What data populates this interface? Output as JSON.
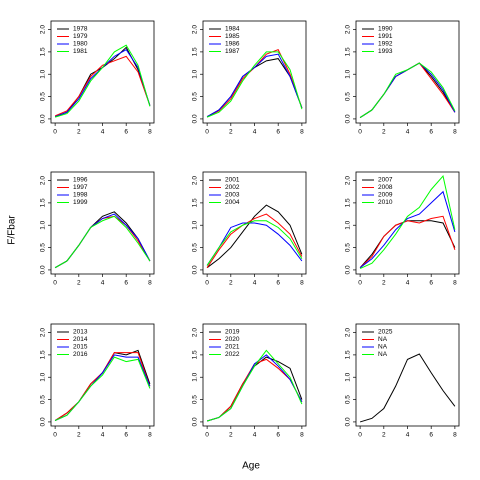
{
  "ylabel": "F/Fbar",
  "xlabel": "Age",
  "chart_data": [
    {
      "type": "line",
      "x": [
        0,
        1,
        2,
        3,
        4,
        5,
        6,
        7,
        8
      ],
      "xlim": [
        0,
        8
      ],
      "xticks": [
        0,
        2,
        4,
        6,
        8
      ],
      "ylim": [
        0,
        2.1
      ],
      "yticks": [
        {
          "value": 0,
          "label": "0.0"
        },
        {
          "value": 0.5,
          "label": "0.5"
        },
        {
          "value": 1,
          "label": "1.0"
        },
        {
          "value": 1.5,
          "label": "1.5"
        },
        {
          "value": 2,
          "label": "2.0"
        }
      ],
      "legend": "top-left",
      "series": [
        {
          "name": "1978",
          "color": "#000000",
          "values": [
            0.05,
            0.15,
            0.5,
            1.0,
            1.15,
            1.35,
            1.6,
            1.1,
            0.3
          ]
        },
        {
          "name": "1979",
          "color": "#ff0000",
          "values": [
            0.07,
            0.18,
            0.5,
            0.95,
            1.2,
            1.3,
            1.4,
            1.05,
            0.3
          ]
        },
        {
          "name": "1980",
          "color": "#0000ff",
          "values": [
            0.05,
            0.15,
            0.45,
            0.9,
            1.15,
            1.4,
            1.55,
            1.15,
            0.3
          ]
        },
        {
          "name": "1981",
          "color": "#00ff00",
          "values": [
            0.04,
            0.12,
            0.4,
            0.85,
            1.15,
            1.5,
            1.65,
            1.2,
            0.28
          ]
        }
      ]
    },
    {
      "type": "line",
      "x": [
        0,
        1,
        2,
        3,
        4,
        5,
        6,
        7,
        8
      ],
      "xlim": [
        0,
        8
      ],
      "xticks": [
        0,
        2,
        4,
        6,
        8
      ],
      "ylim": [
        0,
        2.1
      ],
      "yticks": [
        {
          "value": 0,
          "label": "0.0"
        },
        {
          "value": 0.5,
          "label": "0.5"
        },
        {
          "value": 1,
          "label": "1.0"
        },
        {
          "value": 1.5,
          "label": "1.5"
        },
        {
          "value": 2,
          "label": "2.0"
        }
      ],
      "legend": "top-left",
      "series": [
        {
          "name": "1984",
          "color": "#000000",
          "values": [
            0.05,
            0.2,
            0.5,
            0.95,
            1.15,
            1.3,
            1.35,
            0.95,
            0.25
          ]
        },
        {
          "name": "1985",
          "color": "#ff0000",
          "values": [
            0.05,
            0.18,
            0.45,
            0.9,
            1.15,
            1.45,
            1.55,
            1.0,
            0.25
          ]
        },
        {
          "name": "1986",
          "color": "#0000ff",
          "values": [
            0.05,
            0.2,
            0.5,
            0.95,
            1.15,
            1.4,
            1.45,
            0.95,
            0.25
          ]
        },
        {
          "name": "1987",
          "color": "#00ff00",
          "values": [
            0.04,
            0.15,
            0.4,
            0.85,
            1.2,
            1.5,
            1.5,
            1.1,
            0.22
          ]
        }
      ]
    },
    {
      "type": "line",
      "x": [
        0,
        1,
        2,
        3,
        4,
        5,
        6,
        7,
        8
      ],
      "xlim": [
        0,
        8
      ],
      "xticks": [
        0,
        2,
        4,
        6,
        8
      ],
      "ylim": [
        0,
        2.1
      ],
      "yticks": [
        {
          "value": 0,
          "label": "0.0"
        },
        {
          "value": 0.5,
          "label": "0.5"
        },
        {
          "value": 1,
          "label": "1.0"
        },
        {
          "value": 1.5,
          "label": "1.5"
        },
        {
          "value": 2,
          "label": "2.0"
        }
      ],
      "legend": "top-left",
      "series": [
        {
          "name": "1990",
          "color": "#000000",
          "values": [
            0.03,
            0.2,
            0.55,
            0.95,
            1.1,
            1.25,
            0.95,
            0.6,
            0.15
          ]
        },
        {
          "name": "1991",
          "color": "#ff0000",
          "values": [
            0.03,
            0.2,
            0.55,
            0.95,
            1.1,
            1.25,
            0.9,
            0.55,
            0.15
          ]
        },
        {
          "name": "1992",
          "color": "#0000ff",
          "values": [
            0.03,
            0.2,
            0.55,
            0.95,
            1.1,
            1.25,
            1.0,
            0.65,
            0.15
          ]
        },
        {
          "name": "1993",
          "color": "#00ff00",
          "values": [
            0.03,
            0.2,
            0.55,
            1.0,
            1.1,
            1.25,
            1.05,
            0.7,
            0.18
          ]
        }
      ]
    },
    {
      "type": "line",
      "x": [
        0,
        1,
        2,
        3,
        4,
        5,
        6,
        7,
        8
      ],
      "xlim": [
        0,
        8
      ],
      "xticks": [
        0,
        2,
        4,
        6,
        8
      ],
      "ylim": [
        0,
        2.1
      ],
      "yticks": [
        {
          "value": 0,
          "label": "0.0"
        },
        {
          "value": 0.5,
          "label": "0.5"
        },
        {
          "value": 1,
          "label": "1.0"
        },
        {
          "value": 1.5,
          "label": "1.5"
        },
        {
          "value": 2,
          "label": "2.0"
        }
      ],
      "legend": "top-left",
      "series": [
        {
          "name": "1996",
          "color": "#000000",
          "values": [
            0.05,
            0.2,
            0.55,
            0.95,
            1.2,
            1.3,
            1.05,
            0.7,
            0.2
          ]
        },
        {
          "name": "1997",
          "color": "#ff0000",
          "values": [
            0.05,
            0.2,
            0.55,
            0.95,
            1.15,
            1.2,
            1.0,
            0.65,
            0.2
          ]
        },
        {
          "name": "1998",
          "color": "#0000ff",
          "values": [
            0.05,
            0.2,
            0.55,
            0.95,
            1.15,
            1.25,
            1.0,
            0.7,
            0.2
          ]
        },
        {
          "name": "1999",
          "color": "#00ff00",
          "values": [
            0.05,
            0.2,
            0.55,
            0.95,
            1.1,
            1.2,
            0.95,
            0.6,
            0.2
          ]
        }
      ]
    },
    {
      "type": "line",
      "x": [
        0,
        1,
        2,
        3,
        4,
        5,
        6,
        7,
        8
      ],
      "xlim": [
        0,
        8
      ],
      "xticks": [
        0,
        2,
        4,
        6,
        8
      ],
      "ylim": [
        0,
        2.1
      ],
      "yticks": [
        {
          "value": 0,
          "label": "0.0"
        },
        {
          "value": 0.5,
          "label": "0.5"
        },
        {
          "value": 1,
          "label": "1.0"
        },
        {
          "value": 1.5,
          "label": "1.5"
        },
        {
          "value": 2,
          "label": "2.0"
        }
      ],
      "legend": "top-left",
      "series": [
        {
          "name": "2001",
          "color": "#000000",
          "values": [
            0.05,
            0.25,
            0.5,
            0.85,
            1.2,
            1.45,
            1.3,
            1.0,
            0.35
          ]
        },
        {
          "name": "2002",
          "color": "#ff0000",
          "values": [
            0.05,
            0.45,
            0.8,
            1.0,
            1.15,
            1.25,
            1.05,
            0.8,
            0.3
          ]
        },
        {
          "name": "2003",
          "color": "#0000ff",
          "values": [
            0.1,
            0.5,
            0.95,
            1.05,
            1.05,
            1.0,
            0.8,
            0.55,
            0.2
          ]
        },
        {
          "name": "2004",
          "color": "#00ff00",
          "values": [
            0.1,
            0.5,
            0.85,
            1.0,
            1.1,
            1.1,
            0.95,
            0.7,
            0.25
          ]
        }
      ]
    },
    {
      "type": "line",
      "x": [
        0,
        1,
        2,
        3,
        4,
        5,
        6,
        7,
        8
      ],
      "xlim": [
        0,
        8
      ],
      "xticks": [
        0,
        2,
        4,
        6,
        8
      ],
      "ylim": [
        0,
        2.1
      ],
      "yticks": [
        {
          "value": 0,
          "label": "0.0"
        },
        {
          "value": 0.5,
          "label": "0.5"
        },
        {
          "value": 1,
          "label": "1.0"
        },
        {
          "value": 1.5,
          "label": "1.5"
        },
        {
          "value": 2,
          "label": "2.0"
        }
      ],
      "legend": "top-left",
      "series": [
        {
          "name": "2007",
          "color": "#000000",
          "values": [
            0.05,
            0.35,
            0.75,
            1.0,
            1.1,
            1.1,
            1.1,
            1.05,
            0.5
          ]
        },
        {
          "name": "2008",
          "color": "#ff0000",
          "values": [
            0.05,
            0.3,
            0.75,
            1.0,
            1.1,
            1.05,
            1.15,
            1.2,
            0.45
          ]
        },
        {
          "name": "2009",
          "color": "#0000ff",
          "values": [
            0.05,
            0.25,
            0.55,
            0.9,
            1.15,
            1.25,
            1.5,
            1.75,
            0.85
          ]
        },
        {
          "name": "2010",
          "color": "#00ff00",
          "values": [
            0.03,
            0.15,
            0.45,
            0.8,
            1.2,
            1.4,
            1.8,
            2.1,
            0.9
          ]
        }
      ]
    },
    {
      "type": "line",
      "x": [
        0,
        1,
        2,
        3,
        4,
        5,
        6,
        7,
        8
      ],
      "xlim": [
        0,
        8
      ],
      "xticks": [
        0,
        2,
        4,
        6,
        8
      ],
      "ylim": [
        0,
        2.1
      ],
      "yticks": [
        {
          "value": 0,
          "label": "0.0"
        },
        {
          "value": 0.5,
          "label": "0.5"
        },
        {
          "value": 1,
          "label": "1.0"
        },
        {
          "value": 1.5,
          "label": "1.5"
        },
        {
          "value": 2,
          "label": "2.0"
        }
      ],
      "legend": "top-left",
      "series": [
        {
          "name": "2013",
          "color": "#000000",
          "values": [
            0.03,
            0.2,
            0.45,
            0.85,
            1.1,
            1.55,
            1.5,
            1.6,
            0.85
          ]
        },
        {
          "name": "2014",
          "color": "#ff0000",
          "values": [
            0.03,
            0.2,
            0.45,
            0.85,
            1.1,
            1.55,
            1.55,
            1.55,
            0.8
          ]
        },
        {
          "name": "2015",
          "color": "#0000ff",
          "values": [
            0.03,
            0.15,
            0.45,
            0.8,
            1.1,
            1.5,
            1.45,
            1.45,
            0.8
          ]
        },
        {
          "name": "2016",
          "color": "#00ff00",
          "values": [
            0.03,
            0.15,
            0.45,
            0.8,
            1.05,
            1.45,
            1.35,
            1.4,
            0.75
          ]
        }
      ]
    },
    {
      "type": "line",
      "x": [
        0,
        1,
        2,
        3,
        4,
        5,
        6,
        7,
        8
      ],
      "xlim": [
        0,
        8
      ],
      "xticks": [
        0,
        2,
        4,
        6,
        8
      ],
      "ylim": [
        0,
        2.1
      ],
      "yticks": [
        {
          "value": 0,
          "label": "0.0"
        },
        {
          "value": 0.5,
          "label": "0.5"
        },
        {
          "value": 1,
          "label": "1.0"
        },
        {
          "value": 1.5,
          "label": "1.5"
        },
        {
          "value": 2,
          "label": "2.0"
        }
      ],
      "legend": "top-left",
      "series": [
        {
          "name": "2019",
          "color": "#000000",
          "values": [
            0.02,
            0.1,
            0.35,
            0.85,
            1.25,
            1.45,
            1.35,
            1.2,
            0.5
          ]
        },
        {
          "name": "2020",
          "color": "#ff0000",
          "values": [
            0.02,
            0.1,
            0.35,
            0.85,
            1.3,
            1.4,
            1.2,
            0.95,
            0.45
          ]
        },
        {
          "name": "2021",
          "color": "#0000ff",
          "values": [
            0.02,
            0.1,
            0.3,
            0.8,
            1.3,
            1.5,
            1.25,
            0.95,
            0.45
          ]
        },
        {
          "name": "2022",
          "color": "#00ff00",
          "values": [
            0.02,
            0.1,
            0.3,
            0.8,
            1.25,
            1.6,
            1.3,
            1.0,
            0.4
          ]
        }
      ]
    },
    {
      "type": "line",
      "x": [
        0,
        1,
        2,
        3,
        4,
        5,
        6,
        7,
        8
      ],
      "xlim": [
        0,
        8
      ],
      "xticks": [
        0,
        2,
        4,
        6,
        8
      ],
      "ylim": [
        0,
        2.1
      ],
      "yticks": [
        {
          "value": 0,
          "label": "0.0"
        },
        {
          "value": 0.5,
          "label": "0.5"
        },
        {
          "value": 1,
          "label": "1.0"
        },
        {
          "value": 1.5,
          "label": "1.5"
        },
        {
          "value": 2,
          "label": "2.0"
        }
      ],
      "legend": "top-left",
      "series": [
        {
          "name": "2025",
          "color": "#000000",
          "values": [
            0.0,
            0.08,
            0.3,
            0.8,
            1.4,
            1.52,
            1.1,
            0.7,
            0.35
          ]
        },
        {
          "name": "NA",
          "color": "#ff0000",
          "values": [
            null,
            null,
            null,
            null,
            null,
            null,
            null,
            null,
            null
          ]
        },
        {
          "name": "NA",
          "color": "#0000ff",
          "values": [
            null,
            null,
            null,
            null,
            null,
            null,
            null,
            null,
            null
          ]
        },
        {
          "name": "NA",
          "color": "#00ff00",
          "values": [
            null,
            null,
            null,
            null,
            null,
            null,
            null,
            null,
            null
          ]
        }
      ]
    }
  ]
}
